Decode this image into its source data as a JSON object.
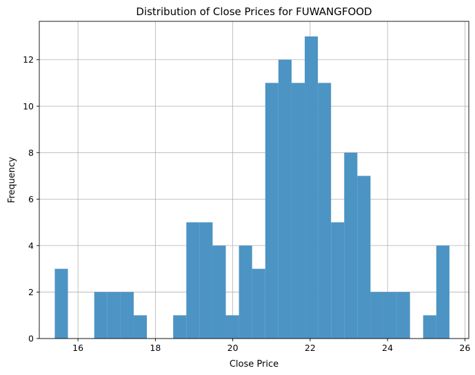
{
  "chart_data": {
    "type": "bar",
    "title": "Distribution of Close Prices for FUWANGFOOD",
    "xlabel": "Close Price",
    "ylabel": "Frequency",
    "xlim": [
      15.0,
      26.1
    ],
    "ylim": [
      0,
      13.65
    ],
    "grid": true,
    "bar_color": "#4c94c4",
    "x_ticks": [
      16,
      18,
      20,
      22,
      24,
      26
    ],
    "y_ticks": [
      0,
      2,
      4,
      6,
      8,
      10,
      12
    ],
    "bin_edges": [
      15.4,
      15.74,
      16.08,
      16.42,
      16.76,
      17.1,
      17.44,
      17.78,
      18.12,
      18.46,
      18.8,
      19.14,
      19.48,
      19.82,
      20.16,
      20.5,
      20.84,
      21.18,
      21.52,
      21.86,
      22.2,
      22.54,
      22.88,
      23.22,
      23.56,
      23.9,
      24.24,
      24.58,
      24.92,
      25.26,
      25.6
    ],
    "values": [
      3,
      0,
      0,
      2,
      2,
      2,
      1,
      0,
      0,
      1,
      5,
      5,
      4,
      1,
      4,
      3,
      11,
      12,
      11,
      13,
      11,
      5,
      8,
      7,
      2,
      2,
      2,
      0,
      1,
      4
    ]
  }
}
